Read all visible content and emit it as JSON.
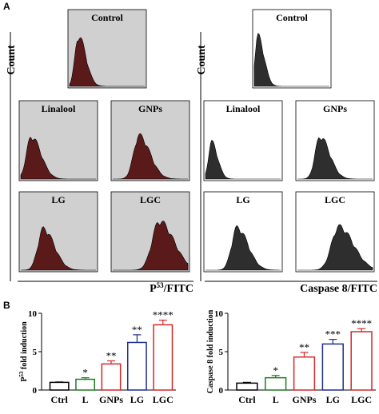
{
  "figure": {
    "panel_a_label": "A",
    "panel_b_label": "B",
    "colors": {
      "left_fill": "#5a1a1a",
      "right_fill": "#2e2e2e",
      "gray_box_bg": "#d0d0d0",
      "control_bar": "#000000",
      "linalool_bar": "#1f7a1f",
      "gnps_bar": "#d62728",
      "lg_bar": "#1f2d8a",
      "lgc_bar": "#d62728"
    }
  },
  "panelA": {
    "left": {
      "y_label": "Count",
      "x_label_base": "P",
      "x_label_sup": "53",
      "x_label_rest": "/FITC",
      "plots": [
        {
          "title": "Control",
          "peak": 0.12,
          "height": 0.98,
          "spread": 0.06,
          "bg": "gray"
        },
        {
          "title": "Linalool",
          "peak": 0.14,
          "height": 0.8,
          "spread": 0.08,
          "bg": "gray"
        },
        {
          "title": "GNPs",
          "peak": 0.35,
          "height": 0.82,
          "spread": 0.09,
          "bg": "gray"
        },
        {
          "title": "LG",
          "peak": 0.3,
          "height": 0.78,
          "spread": 0.09,
          "bg": "gray"
        },
        {
          "title": "LGC",
          "peak": 0.62,
          "height": 0.92,
          "spread": 0.12,
          "bg": "gray"
        }
      ]
    },
    "right": {
      "y_label": "Count",
      "x_label": "Caspase 8/FITC",
      "plots": [
        {
          "title": "Control",
          "peak": 0.05,
          "height": 0.98,
          "spread": 0.05,
          "bg": "white"
        },
        {
          "title": "Linalool",
          "peak": 0.08,
          "height": 0.7,
          "spread": 0.05,
          "bg": "white"
        },
        {
          "title": "GNPs",
          "peak": 0.3,
          "height": 0.8,
          "spread": 0.08,
          "bg": "white"
        },
        {
          "title": "LG",
          "peak": 0.42,
          "height": 0.8,
          "spread": 0.09,
          "bg": "white"
        },
        {
          "title": "LGC",
          "peak": 0.55,
          "height": 0.82,
          "spread": 0.12,
          "bg": "white"
        }
      ]
    }
  },
  "chart_data": [
    {
      "type": "bar",
      "ylabel_base": "P",
      "ylabel_sup": "53",
      "ylabel_rest": " fold induction",
      "categories": [
        "Ctrl",
        "L",
        "GNPs",
        "LG",
        "LGC"
      ],
      "values": [
        1.0,
        1.4,
        3.4,
        6.2,
        8.5
      ],
      "errors": [
        0.05,
        0.2,
        0.4,
        1.0,
        0.6
      ],
      "significance": [
        "",
        "*",
        "**",
        "**",
        "****"
      ],
      "ylim": [
        0,
        10
      ],
      "yticks": [
        "0",
        "5",
        "10"
      ]
    },
    {
      "type": "bar",
      "ylabel": "Caspase 8 fold induction",
      "categories": [
        "Ctrl",
        "L",
        "GNPs",
        "LG",
        "LGC"
      ],
      "values": [
        0.9,
        1.6,
        4.3,
        6.0,
        7.6
      ],
      "errors": [
        0.1,
        0.3,
        0.6,
        0.6,
        0.4
      ],
      "significance": [
        "",
        "*",
        "**",
        "***",
        "****"
      ],
      "ylim": [
        0,
        10
      ],
      "yticks": [
        "0",
        "5",
        "10"
      ]
    }
  ]
}
